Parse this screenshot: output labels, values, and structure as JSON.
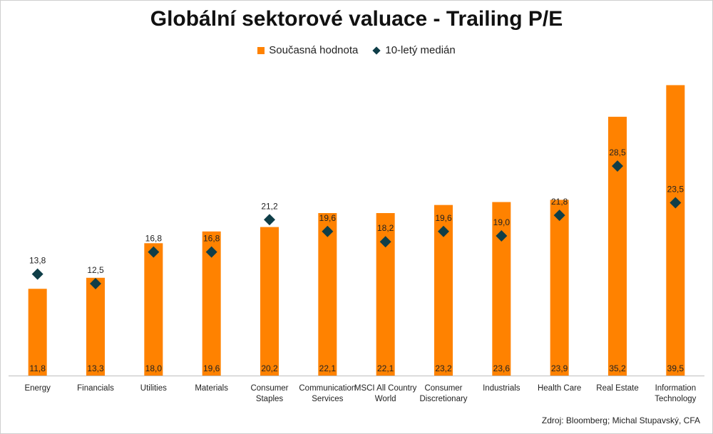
{
  "colors": {
    "bar": "#FF8200",
    "marker": "#0F3E48",
    "axis": "#bfbfbf"
  },
  "legend": {
    "bar_label": "Současná hodnota",
    "marker_label": "10-letý medián"
  },
  "source": "Zdroj: Bloomberg; Michal Stupavský, CFA",
  "chart_data": {
    "type": "bar",
    "title": "Globální sektorové valuace - Trailing P/E",
    "xlabel": "",
    "ylabel": "",
    "ylim": [
      0,
      41
    ],
    "legend_position": "top-center",
    "grid": false,
    "categories": [
      [
        "Energy"
      ],
      [
        "Financials"
      ],
      [
        "Utilities"
      ],
      [
        "Materials"
      ],
      [
        "Consumer",
        "Staples"
      ],
      [
        "Communication",
        "Services"
      ],
      [
        "MSCI All Country",
        "World"
      ],
      [
        "Consumer",
        "Discretionary"
      ],
      [
        "Industrials"
      ],
      [
        "Health Care"
      ],
      [
        "Real Estate"
      ],
      [
        "Information",
        "Technology"
      ]
    ],
    "series": [
      {
        "name": "Současná hodnota",
        "kind": "bar",
        "values": [
          11.8,
          13.3,
          18.0,
          19.6,
          20.2,
          22.1,
          22.1,
          23.2,
          23.6,
          23.9,
          35.2,
          39.5
        ],
        "labels": [
          "11,8",
          "13,3",
          "18,0",
          "19,6",
          "20,2",
          "22,1",
          "22,1",
          "23,2",
          "23,6",
          "23,9",
          "35,2",
          "39,5"
        ]
      },
      {
        "name": "10-letý medián",
        "kind": "marker",
        "values": [
          13.8,
          12.5,
          16.8,
          16.8,
          21.2,
          19.6,
          18.2,
          19.6,
          19.0,
          21.8,
          28.5,
          23.5
        ],
        "labels": [
          "13,8",
          "12,5",
          "16,8",
          "16,8",
          "21,2",
          "19,6",
          "18,2",
          "19,6",
          "19,0",
          "21,8",
          "28,5",
          "23,5"
        ]
      }
    ]
  }
}
